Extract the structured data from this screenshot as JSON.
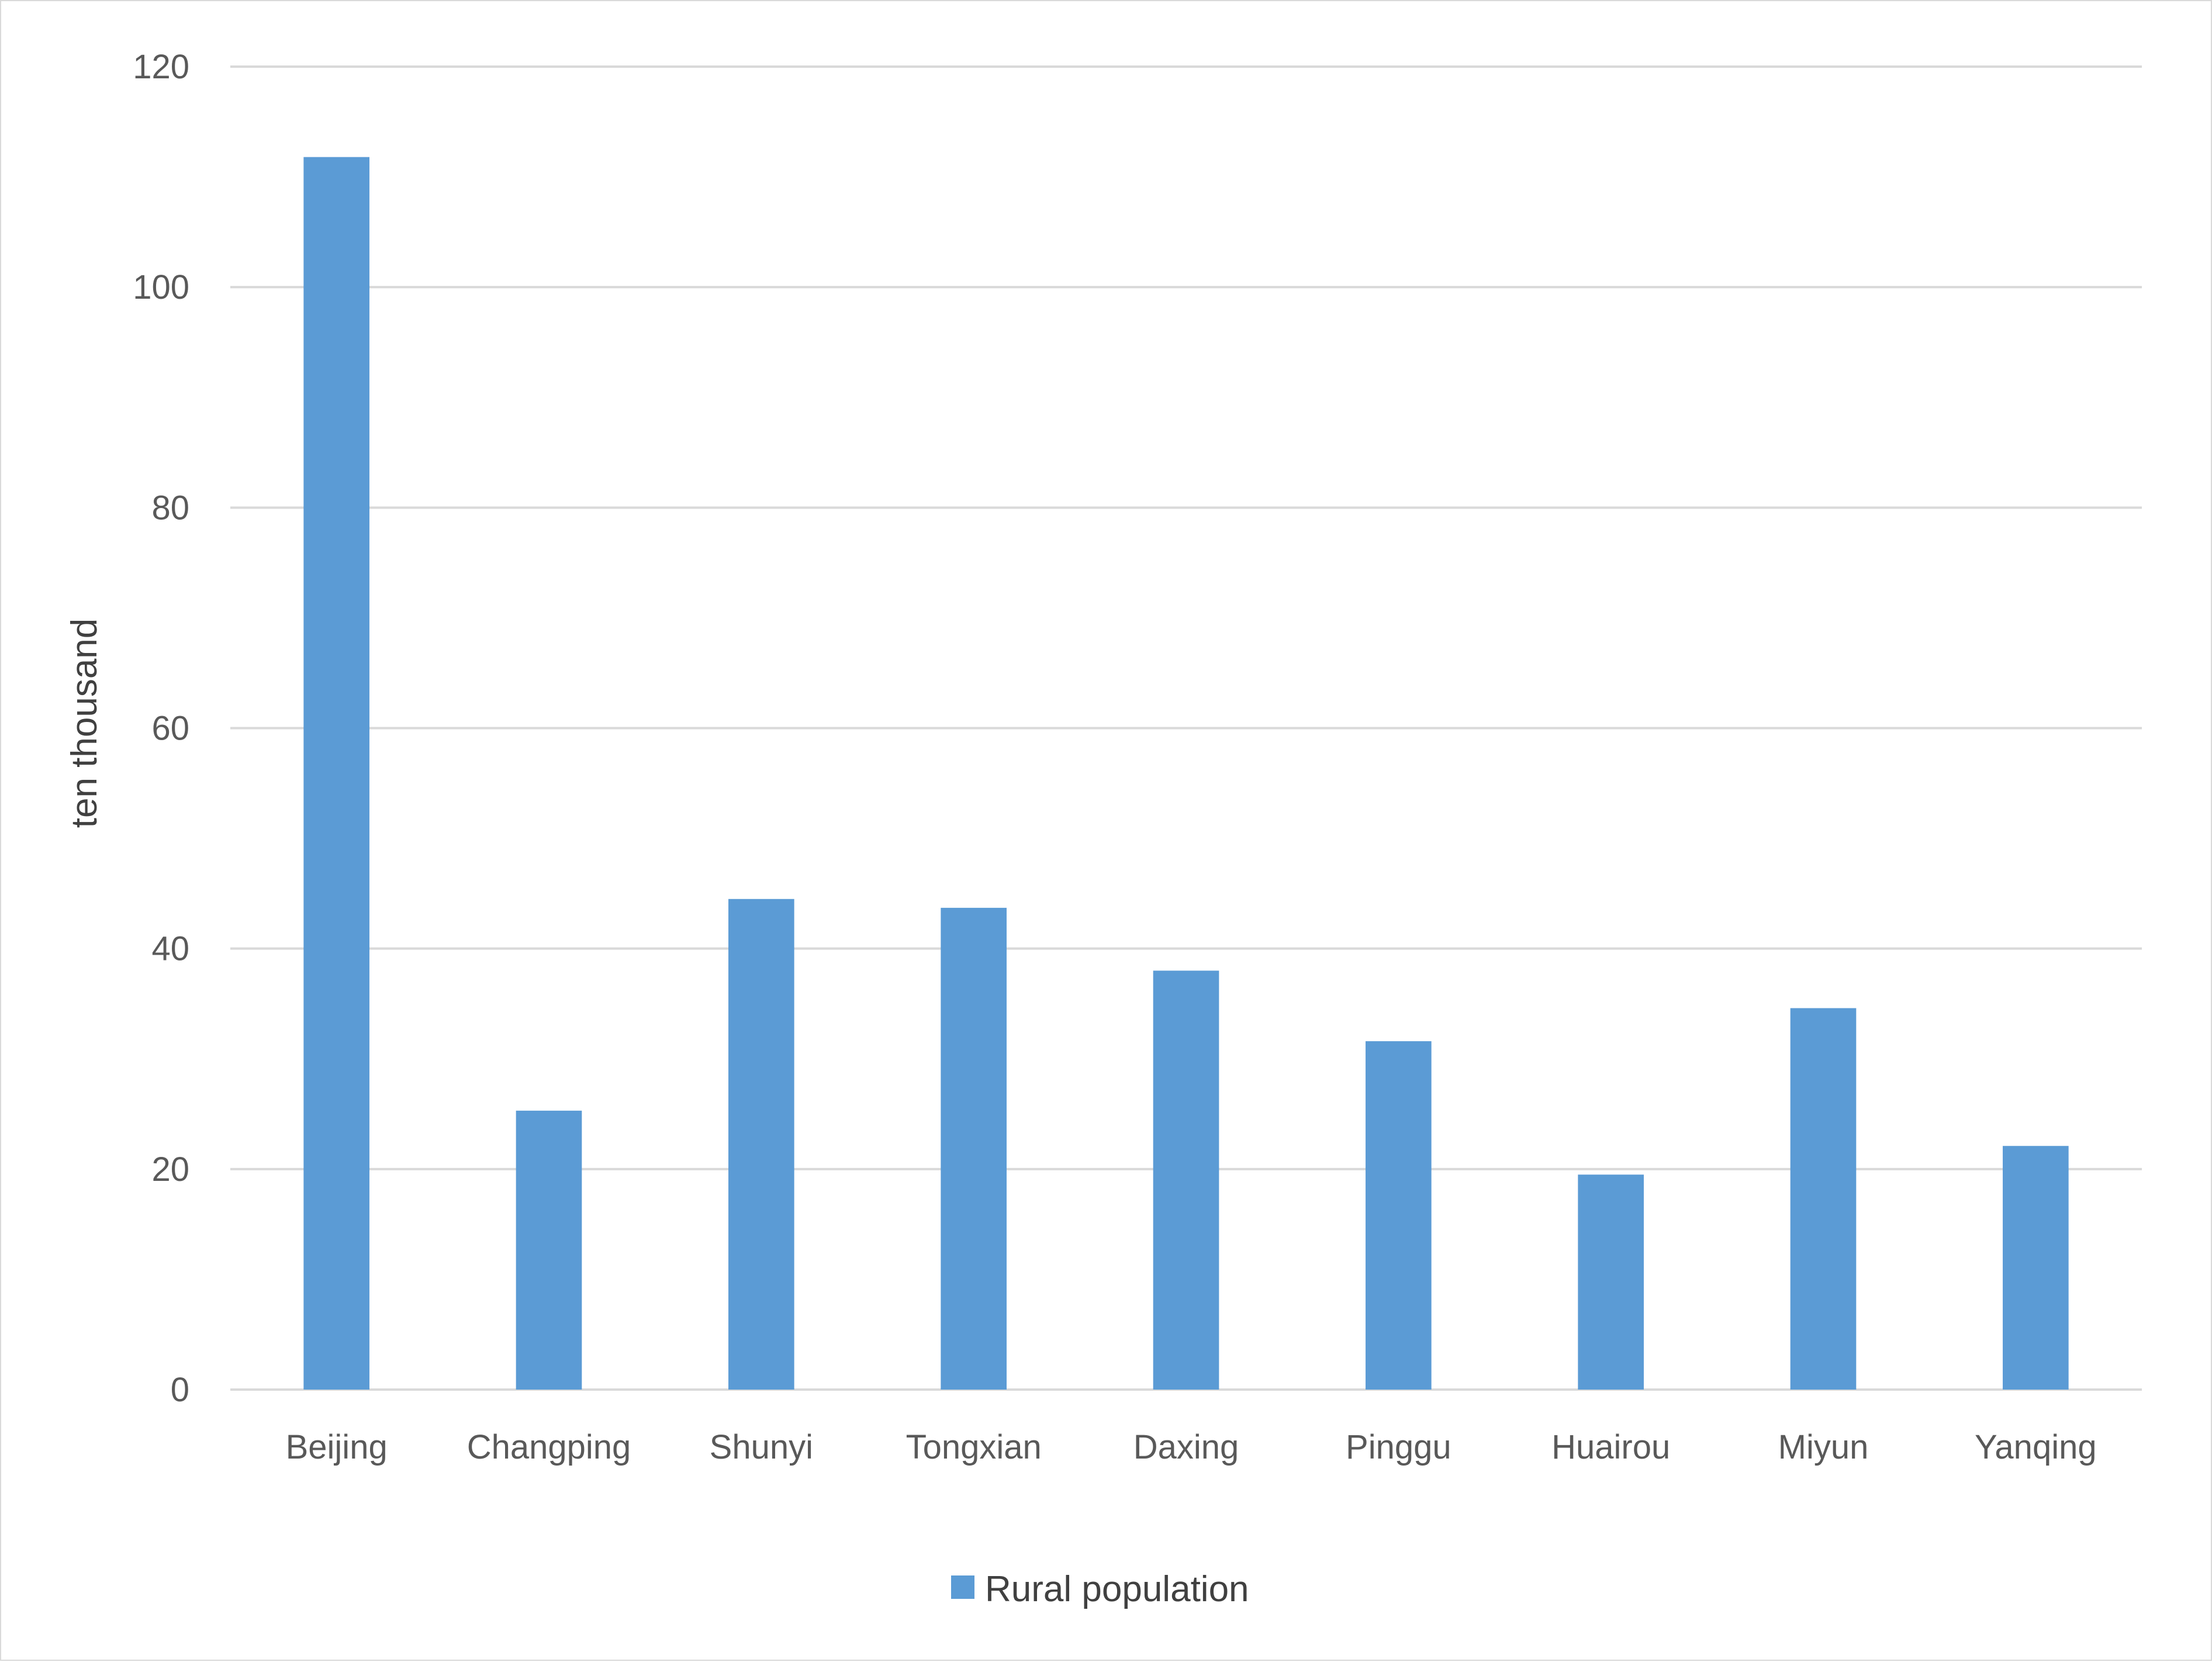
{
  "chart_data": {
    "type": "bar",
    "title": "",
    "xlabel": "",
    "ylabel": "ten thousand",
    "categories": [
      "Beijing",
      "Changping",
      "Shunyi",
      "Tongxian",
      "Daxing",
      "Pinggu",
      "Huairou",
      "Miyun",
      "Yanqing"
    ],
    "series": [
      {
        "name": "Rural population",
        "values": [
          111.8,
          25.3,
          44.5,
          43.7,
          38.0,
          31.6,
          19.5,
          34.6,
          22.1
        ],
        "color": "#5b9bd5"
      }
    ],
    "ylim": [
      0,
      120
    ],
    "yticks": [
      "0",
      "20",
      "40",
      "60",
      "80",
      "100",
      "120"
    ],
    "grid": true,
    "legend_position": "bottom"
  }
}
